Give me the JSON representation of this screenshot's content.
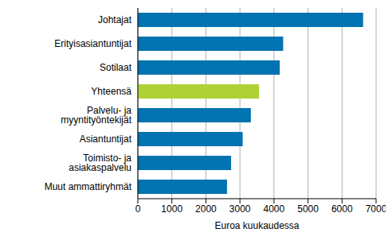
{
  "chart_data": {
    "type": "bar",
    "orientation": "horizontal",
    "categories": [
      "Johtajat",
      "Erityisasiantuntijat",
      "Sotilaat",
      "Yhteensä",
      "Palvelu- ja myyntityöntekijät",
      "Asiantuntijat",
      "Toimisto- ja asiakaspalvelu",
      "Muut ammattiryhmät"
    ],
    "values": [
      6620,
      4270,
      4170,
      3560,
      3320,
      3080,
      2740,
      2620
    ],
    "colors": [
      "#0073b0",
      "#0073b0",
      "#0073b0",
      "#b0d136",
      "#0073b0",
      "#0073b0",
      "#0073b0",
      "#0073b0"
    ],
    "xlabel": "Euroa kuukaudessa",
    "xlim": [
      0,
      7000
    ],
    "xticks": [
      0,
      1000,
      2000,
      3000,
      4000,
      5000,
      6000,
      7000
    ],
    "grid": true
  }
}
